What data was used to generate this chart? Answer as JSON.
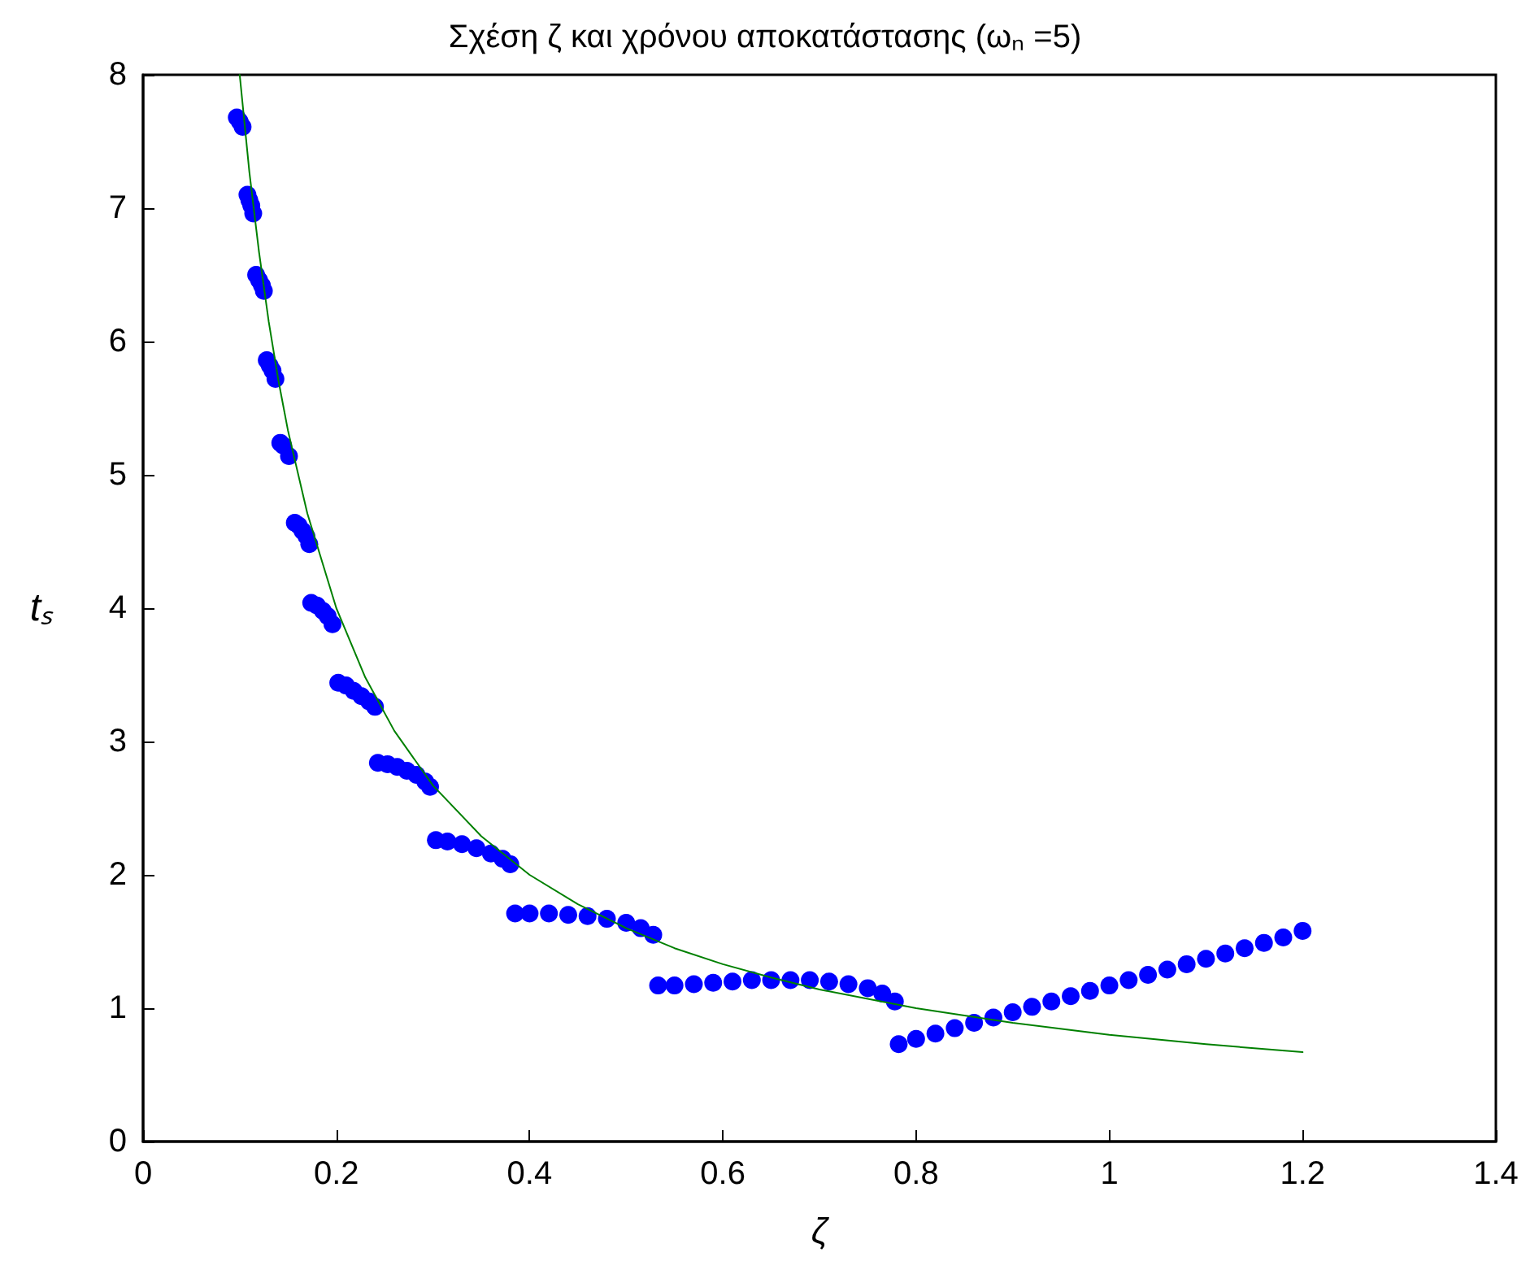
{
  "chart_data": {
    "type": "scatter",
    "title": "Σχέση ζ και χρόνου αποκατάστασης (ωₙ =5)",
    "xlabel": "ζ",
    "ylabel": "tₛ",
    "xlim": [
      0,
      1.4
    ],
    "xticks": [
      0,
      0.2,
      0.4,
      0.6,
      0.8,
      1,
      1.2,
      1.4
    ],
    "ylim": [
      0,
      8
    ],
    "yticks": [
      0,
      1,
      2,
      3,
      4,
      5,
      6,
      7,
      8
    ],
    "grid": false,
    "series": [
      {
        "color": "#0000ff",
        "marker": "circle",
        "x": [
          0.097,
          0.1,
          0.103,
          0.108,
          0.11,
          0.112,
          0.114,
          0.117,
          0.12,
          0.123,
          0.125,
          0.128,
          0.131,
          0.134,
          0.137,
          0.142,
          0.145,
          0.151,
          0.157,
          0.161,
          0.165,
          0.169,
          0.172,
          0.174,
          0.18,
          0.186,
          0.191,
          0.196,
          0.202,
          0.21,
          0.218,
          0.226,
          0.234,
          0.24,
          0.243,
          0.253,
          0.263,
          0.273,
          0.283,
          0.292,
          0.297,
          0.303,
          0.315,
          0.33,
          0.345,
          0.36,
          0.372,
          0.38,
          0.385,
          0.4,
          0.42,
          0.44,
          0.46,
          0.48,
          0.5,
          0.515,
          0.528,
          0.533,
          0.55,
          0.57,
          0.59,
          0.61,
          0.63,
          0.65,
          0.67,
          0.69,
          0.71,
          0.73,
          0.75,
          0.765,
          0.778,
          0.782,
          0.8,
          0.82,
          0.84,
          0.86,
          0.88,
          0.9,
          0.92,
          0.94,
          0.96,
          0.98,
          1.0,
          1.02,
          1.04,
          1.06,
          1.08,
          1.1,
          1.12,
          1.14,
          1.16,
          1.18,
          1.2
        ],
        "values": [
          7.68,
          7.65,
          7.61,
          7.1,
          7.06,
          7.02,
          6.96,
          6.5,
          6.46,
          6.42,
          6.38,
          5.86,
          5.82,
          5.78,
          5.72,
          5.24,
          5.22,
          5.14,
          4.64,
          4.62,
          4.58,
          4.54,
          4.48,
          4.04,
          4.02,
          3.98,
          3.94,
          3.88,
          3.44,
          3.42,
          3.38,
          3.34,
          3.3,
          3.26,
          2.84,
          2.83,
          2.81,
          2.78,
          2.75,
          2.7,
          2.66,
          2.26,
          2.25,
          2.23,
          2.2,
          2.16,
          2.12,
          2.08,
          1.71,
          1.71,
          1.71,
          1.7,
          1.69,
          1.67,
          1.64,
          1.6,
          1.55,
          1.17,
          1.17,
          1.18,
          1.19,
          1.2,
          1.21,
          1.21,
          1.21,
          1.21,
          1.2,
          1.18,
          1.15,
          1.11,
          1.05,
          0.73,
          0.77,
          0.81,
          0.85,
          0.89,
          0.93,
          0.97,
          1.01,
          1.05,
          1.09,
          1.13,
          1.17,
          1.21,
          1.25,
          1.29,
          1.33,
          1.37,
          1.41,
          1.45,
          1.49,
          1.53,
          1.58
        ]
      },
      {
        "type": "line",
        "color": "#008000",
        "marker": "none",
        "line_style": "solid",
        "x": [
          0.1,
          0.11,
          0.12,
          0.13,
          0.14,
          0.15,
          0.17,
          0.2,
          0.23,
          0.26,
          0.3,
          0.35,
          0.4,
          0.45,
          0.5,
          0.55,
          0.6,
          0.65,
          0.7,
          0.75,
          0.8,
          0.9,
          1.0,
          1.1,
          1.2
        ],
        "values": [
          8.0,
          7.27,
          6.67,
          6.15,
          5.71,
          5.33,
          4.71,
          4.0,
          3.48,
          3.08,
          2.67,
          2.29,
          2.0,
          1.78,
          1.6,
          1.45,
          1.33,
          1.23,
          1.14,
          1.07,
          1.0,
          0.89,
          0.8,
          0.73,
          0.67
        ]
      }
    ]
  }
}
